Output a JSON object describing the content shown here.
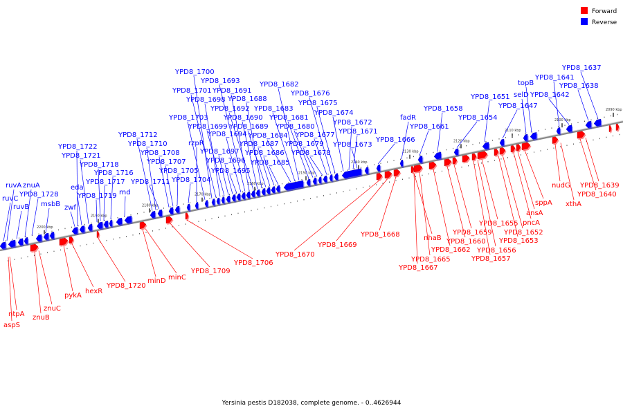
{
  "caption": "Yersinia pestis D182038, complete genome. - 0..4626944",
  "legend": [
    {
      "label": "Forward",
      "color": "#ff0000"
    },
    {
      "label": "Reverse",
      "color": "#0000ff"
    }
  ],
  "colors": {
    "forward": "#ff0000",
    "reverse": "#0000ff",
    "axis": "#888888"
  },
  "ticks": [
    "2200 kbp",
    "2190 kbp",
    "2180 kbp",
    "2170 kbp",
    "2160 kbp",
    "2150 kbp",
    "2140 kbp",
    "2130 kbp",
    "2120 kbp",
    "2110 kbp",
    "2100 kbp",
    "2090 kbp"
  ],
  "reverse_labels": [
    "ruvA",
    "znuA",
    "ruvC",
    "YPD8_1728",
    "ruvB",
    "msbB",
    "zwf",
    "eda",
    "YPD8_1722",
    "YPD8_1721",
    "YPD8_1719",
    "YPD8_1718",
    "YPD8_1717",
    "YPD8_1716",
    "rnd",
    "YPD8_1712",
    "YPD8_1710",
    "YPD8_1711",
    "YPD8_1708",
    "YPD8_1707",
    "YPD8_1705",
    "YPD8_1704",
    "rzpR",
    "YPD8_1703",
    "YPD8_1700",
    "YPD8_1701",
    "YPD8_1698",
    "YPD8_1699",
    "YPD8_1697",
    "YPD8_1696",
    "YPD8_1695",
    "YPD8_1694",
    "YPD8_1693",
    "YPD8_1691",
    "YPD8_1692",
    "YPD8_1690",
    "YPD8_1688",
    "YPD8_1689",
    "YPD8_1687",
    "YPD8_1686",
    "YPD8_1685",
    "YPD8_1684",
    "YPD8_1683",
    "YPD8_1682",
    "YPD8_1681",
    "YPD8_1680",
    "YPD8_1679",
    "YPD8_1678",
    "YPD8_1677",
    "YPD8_1676",
    "YPD8_1675",
    "YPD8_1674",
    "YPD8_1672",
    "YPD8_1671",
    "YPD8_1673",
    "YPD8_1666",
    "fadR",
    "YPD8_1661",
    "YPD8_1658",
    "YPD8_1654",
    "YPD8_1651",
    "YPD8_1647",
    "selD",
    "topB",
    "YPD8_1641",
    "YPD8_1642",
    "YPD8_1638",
    "YPD8_1637"
  ],
  "forward_labels": [
    "ntpA",
    "aspS",
    "znuB",
    "znuC",
    "pykA",
    "hexR",
    "YPD8_1720",
    "minD",
    "minC",
    "YPD8_1709",
    "YPD8_1706",
    "YPD8_1670",
    "YPD8_1669",
    "YPD8_1668",
    "YPD8_1667",
    "YPD8_1665",
    "nhaB",
    "YPD8_1662",
    "YPD8_1660",
    "YPD8_1659",
    "YPD8_1657",
    "YPD8_1656",
    "YPD8_1655",
    "YPD8_1653",
    "YPD8_1652",
    "pncA",
    "ansA",
    "sppA",
    "xthA",
    "nudG",
    "YPD8_1640",
    "YPD8_1639"
  ]
}
